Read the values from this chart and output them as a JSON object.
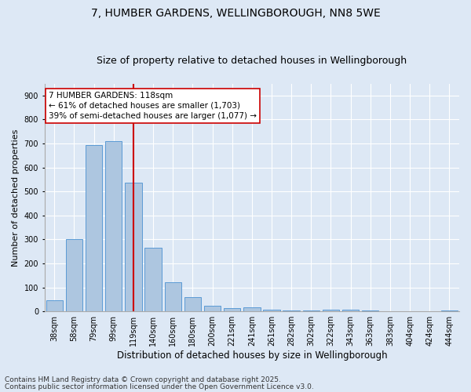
{
  "title1": "7, HUMBER GARDENS, WELLINGBOROUGH, NN8 5WE",
  "title2": "Size of property relative to detached houses in Wellingborough",
  "xlabel": "Distribution of detached houses by size in Wellingborough",
  "ylabel": "Number of detached properties",
  "categories": [
    "38sqm",
    "58sqm",
    "79sqm",
    "99sqm",
    "119sqm",
    "140sqm",
    "160sqm",
    "180sqm",
    "200sqm",
    "221sqm",
    "241sqm",
    "261sqm",
    "282sqm",
    "302sqm",
    "322sqm",
    "343sqm",
    "363sqm",
    "383sqm",
    "404sqm",
    "424sqm",
    "444sqm"
  ],
  "values": [
    45,
    300,
    695,
    710,
    535,
    265,
    120,
    58,
    25,
    15,
    18,
    7,
    5,
    3,
    7,
    7,
    3,
    2,
    1,
    1,
    5
  ],
  "bar_color": "#adc6e0",
  "bar_edge_color": "#5b9bd5",
  "red_line_index": 4,
  "red_line_color": "#cc0000",
  "annotation_text": "7 HUMBER GARDENS: 118sqm\n← 61% of detached houses are smaller (1,703)\n39% of semi-detached houses are larger (1,077) →",
  "annotation_box_color": "#ffffff",
  "annotation_box_edge": "#cc0000",
  "ylim": [
    0,
    950
  ],
  "yticks": [
    0,
    100,
    200,
    300,
    400,
    500,
    600,
    700,
    800,
    900
  ],
  "background_color": "#dde8f5",
  "footer1": "Contains HM Land Registry data © Crown copyright and database right 2025.",
  "footer2": "Contains public sector information licensed under the Open Government Licence v3.0.",
  "title1_fontsize": 10,
  "title2_fontsize": 9,
  "xlabel_fontsize": 8.5,
  "ylabel_fontsize": 8,
  "tick_fontsize": 7,
  "annotation_fontsize": 7.5,
  "footer_fontsize": 6.5,
  "grid_color": "#ffffff",
  "spine_color": "#aaaaaa"
}
